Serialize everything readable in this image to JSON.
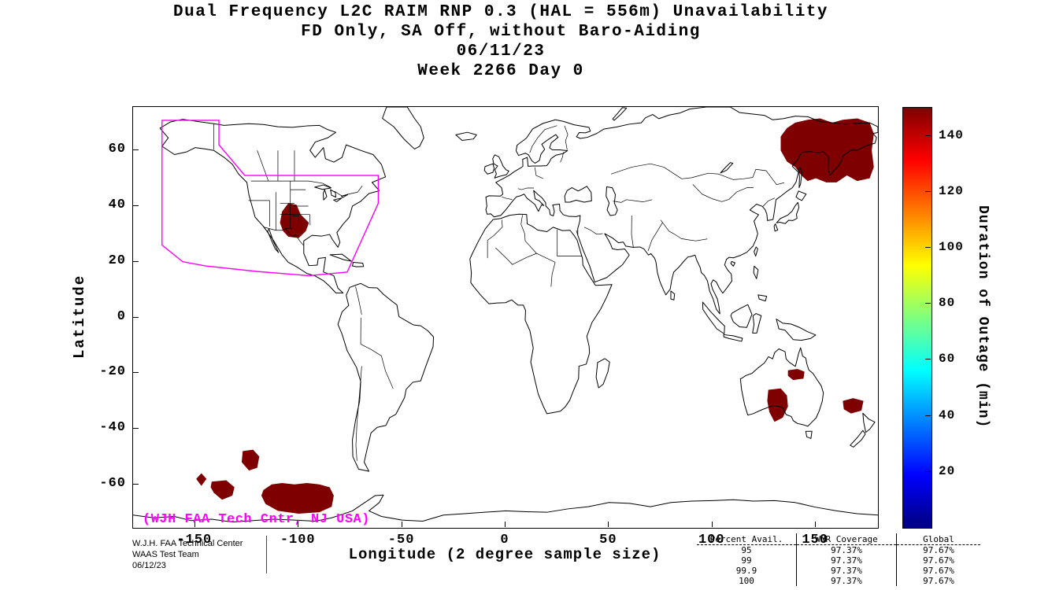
{
  "title": {
    "line1": "Dual Frequency L2C RAIM RNP 0.3 (HAL = 556m) Unavailability",
    "line2": "FD Only, SA Off, without Baro-Aiding",
    "line3": "06/11/23",
    "line4": "Week 2266 Day 0"
  },
  "chart_data": {
    "type": "heatmap",
    "map": {
      "xlabel": "Longitude (2 degree sample size)",
      "ylabel": "Latitude",
      "xlim": [
        -180,
        180
      ],
      "ylim": [
        -75.6,
        75.6
      ],
      "xticks": [
        -150,
        -100,
        -50,
        0,
        50,
        100,
        150
      ],
      "yticks": [
        60,
        40,
        20,
        0,
        -20,
        -40,
        -60
      ],
      "grid": false
    },
    "colorbar": {
      "label": "Duration of Outage (min)",
      "min": 0,
      "max": 150,
      "ticks": [
        20,
        40,
        60,
        80,
        100,
        120,
        140
      ],
      "colormap": "jet",
      "outage_color": "#7f0000"
    },
    "waas_boundary_color": "#ff00ff",
    "annotation": "(WJH FAA Tech Cntr, NJ USA)",
    "waas_boundary": [
      [
        -166,
        70.8
      ],
      [
        -138.5,
        70.8
      ],
      [
        -138.5,
        62
      ],
      [
        -126,
        51
      ],
      [
        -61.5,
        51
      ],
      [
        -61.5,
        41
      ],
      [
        -76.5,
        16.3
      ],
      [
        -95,
        15
      ],
      [
        -120,
        16.5
      ],
      [
        -145,
        18.5
      ],
      [
        -156,
        20
      ],
      [
        -166,
        26
      ]
    ],
    "outage_regions": [
      [
        [
          -109,
          34
        ],
        [
          -108,
          38
        ],
        [
          -105,
          41
        ],
        [
          -101,
          40.5
        ],
        [
          -99,
          37
        ],
        [
          -95,
          34
        ],
        [
          -96.5,
          31
        ],
        [
          -100,
          28.5
        ],
        [
          -105,
          29
        ],
        [
          -107.5,
          31
        ]
      ],
      [
        [
          133,
          60
        ],
        [
          133,
          65
        ],
        [
          136,
          68
        ],
        [
          140,
          70
        ],
        [
          146,
          71
        ],
        [
          152,
          71.5
        ],
        [
          158,
          70
        ],
        [
          163,
          71
        ],
        [
          170,
          71.5
        ],
        [
          176,
          70
        ],
        [
          178,
          66
        ],
        [
          177,
          60
        ],
        [
          178,
          54
        ],
        [
          176,
          50
        ],
        [
          170,
          49
        ],
        [
          165,
          51
        ],
        [
          160,
          48.5
        ],
        [
          155,
          48.5
        ],
        [
          150,
          50
        ],
        [
          146,
          49
        ],
        [
          143,
          51
        ],
        [
          140,
          54
        ],
        [
          136,
          56
        ]
      ],
      [
        [
          136.5,
          -19
        ],
        [
          141,
          -18.5
        ],
        [
          144.5,
          -19.5
        ],
        [
          144,
          -22
        ],
        [
          139,
          -22.5
        ],
        [
          136.5,
          -21
        ]
      ],
      [
        [
          127,
          -26
        ],
        [
          133,
          -25.5
        ],
        [
          136,
          -28
        ],
        [
          136.5,
          -32
        ],
        [
          134,
          -36
        ],
        [
          130,
          -37.5
        ],
        [
          127.5,
          -34
        ],
        [
          126.5,
          -30
        ]
      ],
      [
        [
          163,
          -30
        ],
        [
          168,
          -29
        ],
        [
          173,
          -30
        ],
        [
          172,
          -33.5
        ],
        [
          167,
          -34.5
        ],
        [
          163.5,
          -33
        ]
      ],
      [
        [
          -147,
          -56
        ],
        [
          -144.5,
          -58
        ],
        [
          -147,
          -60.5
        ],
        [
          -149.5,
          -58
        ]
      ],
      [
        [
          -142,
          -59
        ],
        [
          -135,
          -58.5
        ],
        [
          -131,
          -61
        ],
        [
          -132,
          -64
        ],
        [
          -137,
          -65.5
        ],
        [
          -141,
          -63
        ],
        [
          -142.5,
          -61
        ]
      ],
      [
        [
          -127,
          -48
        ],
        [
          -122,
          -47.5
        ],
        [
          -119,
          -50
        ],
        [
          -120,
          -54
        ],
        [
          -124,
          -55
        ],
        [
          -127.5,
          -52
        ]
      ],
      [
        [
          -117,
          -62
        ],
        [
          -113,
          -60
        ],
        [
          -108,
          -59.5
        ],
        [
          -102,
          -60
        ],
        [
          -96,
          -59.5
        ],
        [
          -90,
          -60
        ],
        [
          -85,
          -61
        ],
        [
          -83,
          -64
        ],
        [
          -84,
          -68
        ],
        [
          -90,
          -70
        ],
        [
          -100,
          -70.5
        ],
        [
          -110,
          -69.5
        ],
        [
          -116,
          -67
        ],
        [
          -118,
          -64
        ]
      ]
    ]
  },
  "footer": {
    "left_lines": [
      "W.J.H. FAA Technical Center",
      "WAAS Test Team",
      "06/12/23"
    ],
    "table": {
      "headers": [
        "Percent Avail.",
        "WNR Coverage",
        "Global"
      ],
      "rows": [
        [
          "95",
          "97.37%",
          "97.67%"
        ],
        [
          "99",
          "97.37%",
          "97.67%"
        ],
        [
          "99.9",
          "97.37%",
          "97.67%"
        ],
        [
          "100",
          "97.37%",
          "97.67%"
        ]
      ]
    }
  }
}
